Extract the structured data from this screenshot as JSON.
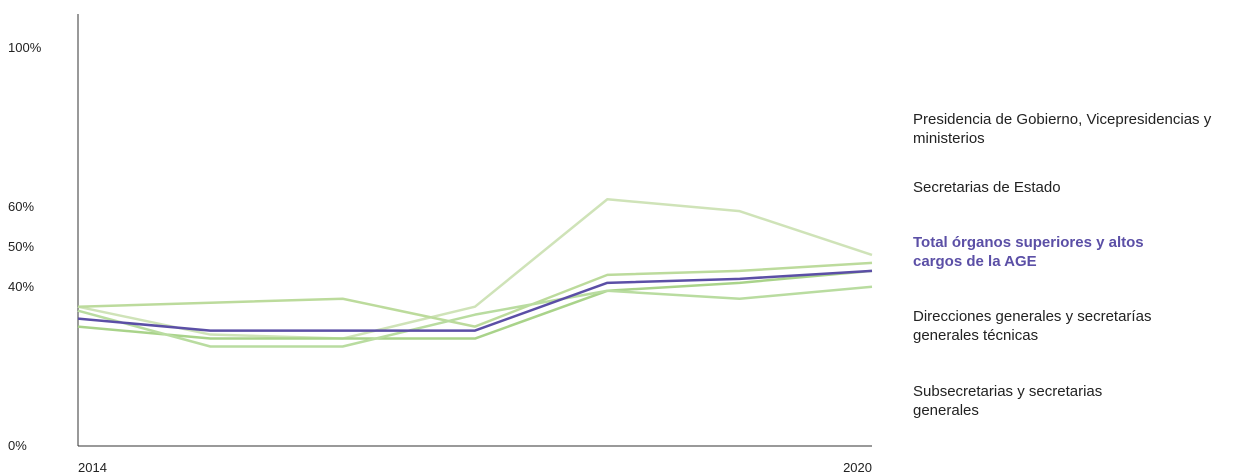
{
  "chart_data": {
    "type": "line",
    "title": "",
    "xlabel": "",
    "ylabel": "",
    "x": [
      2014,
      2015,
      2016,
      2017,
      2018,
      2019,
      2020
    ],
    "x_tick_labels": [
      "2014",
      "2020"
    ],
    "y_ticks": [
      {
        "value": 0,
        "label": "0%"
      },
      {
        "value": 40,
        "label": "40%"
      },
      {
        "value": 50,
        "label": "50%"
      },
      {
        "value": 60,
        "label": "60%"
      },
      {
        "value": 100,
        "label": "100%"
      }
    ],
    "ylim": [
      0,
      100
    ],
    "grid": false,
    "legend_position": "right",
    "series": [
      {
        "name": "Presidencia de Gobierno, Vicepresidencias y ministerios",
        "color": "#cfe3b8",
        "highlight": false,
        "values": [
          35,
          28,
          27,
          35,
          62,
          59,
          48
        ]
      },
      {
        "name": "Secretarias de Estado",
        "color": "#bcdb9c",
        "highlight": false,
        "values": [
          35,
          36,
          37,
          30,
          43,
          44,
          46
        ]
      },
      {
        "name": "Total órganos superiores y altos cargos de la AGE",
        "color": "#5b4fa6",
        "highlight": true,
        "values": [
          32,
          29,
          29,
          29,
          41,
          42,
          44
        ]
      },
      {
        "name": "Direcciones generales y secretarías generales técnicas",
        "color": "#a9d38a",
        "highlight": false,
        "values": [
          30,
          27,
          27,
          27,
          39,
          41,
          44
        ]
      },
      {
        "name": "Subsecretarias y secretarias generales",
        "color": "#b9dca0",
        "highlight": false,
        "values": [
          34,
          25,
          25,
          33,
          39,
          37,
          40
        ]
      }
    ]
  }
}
